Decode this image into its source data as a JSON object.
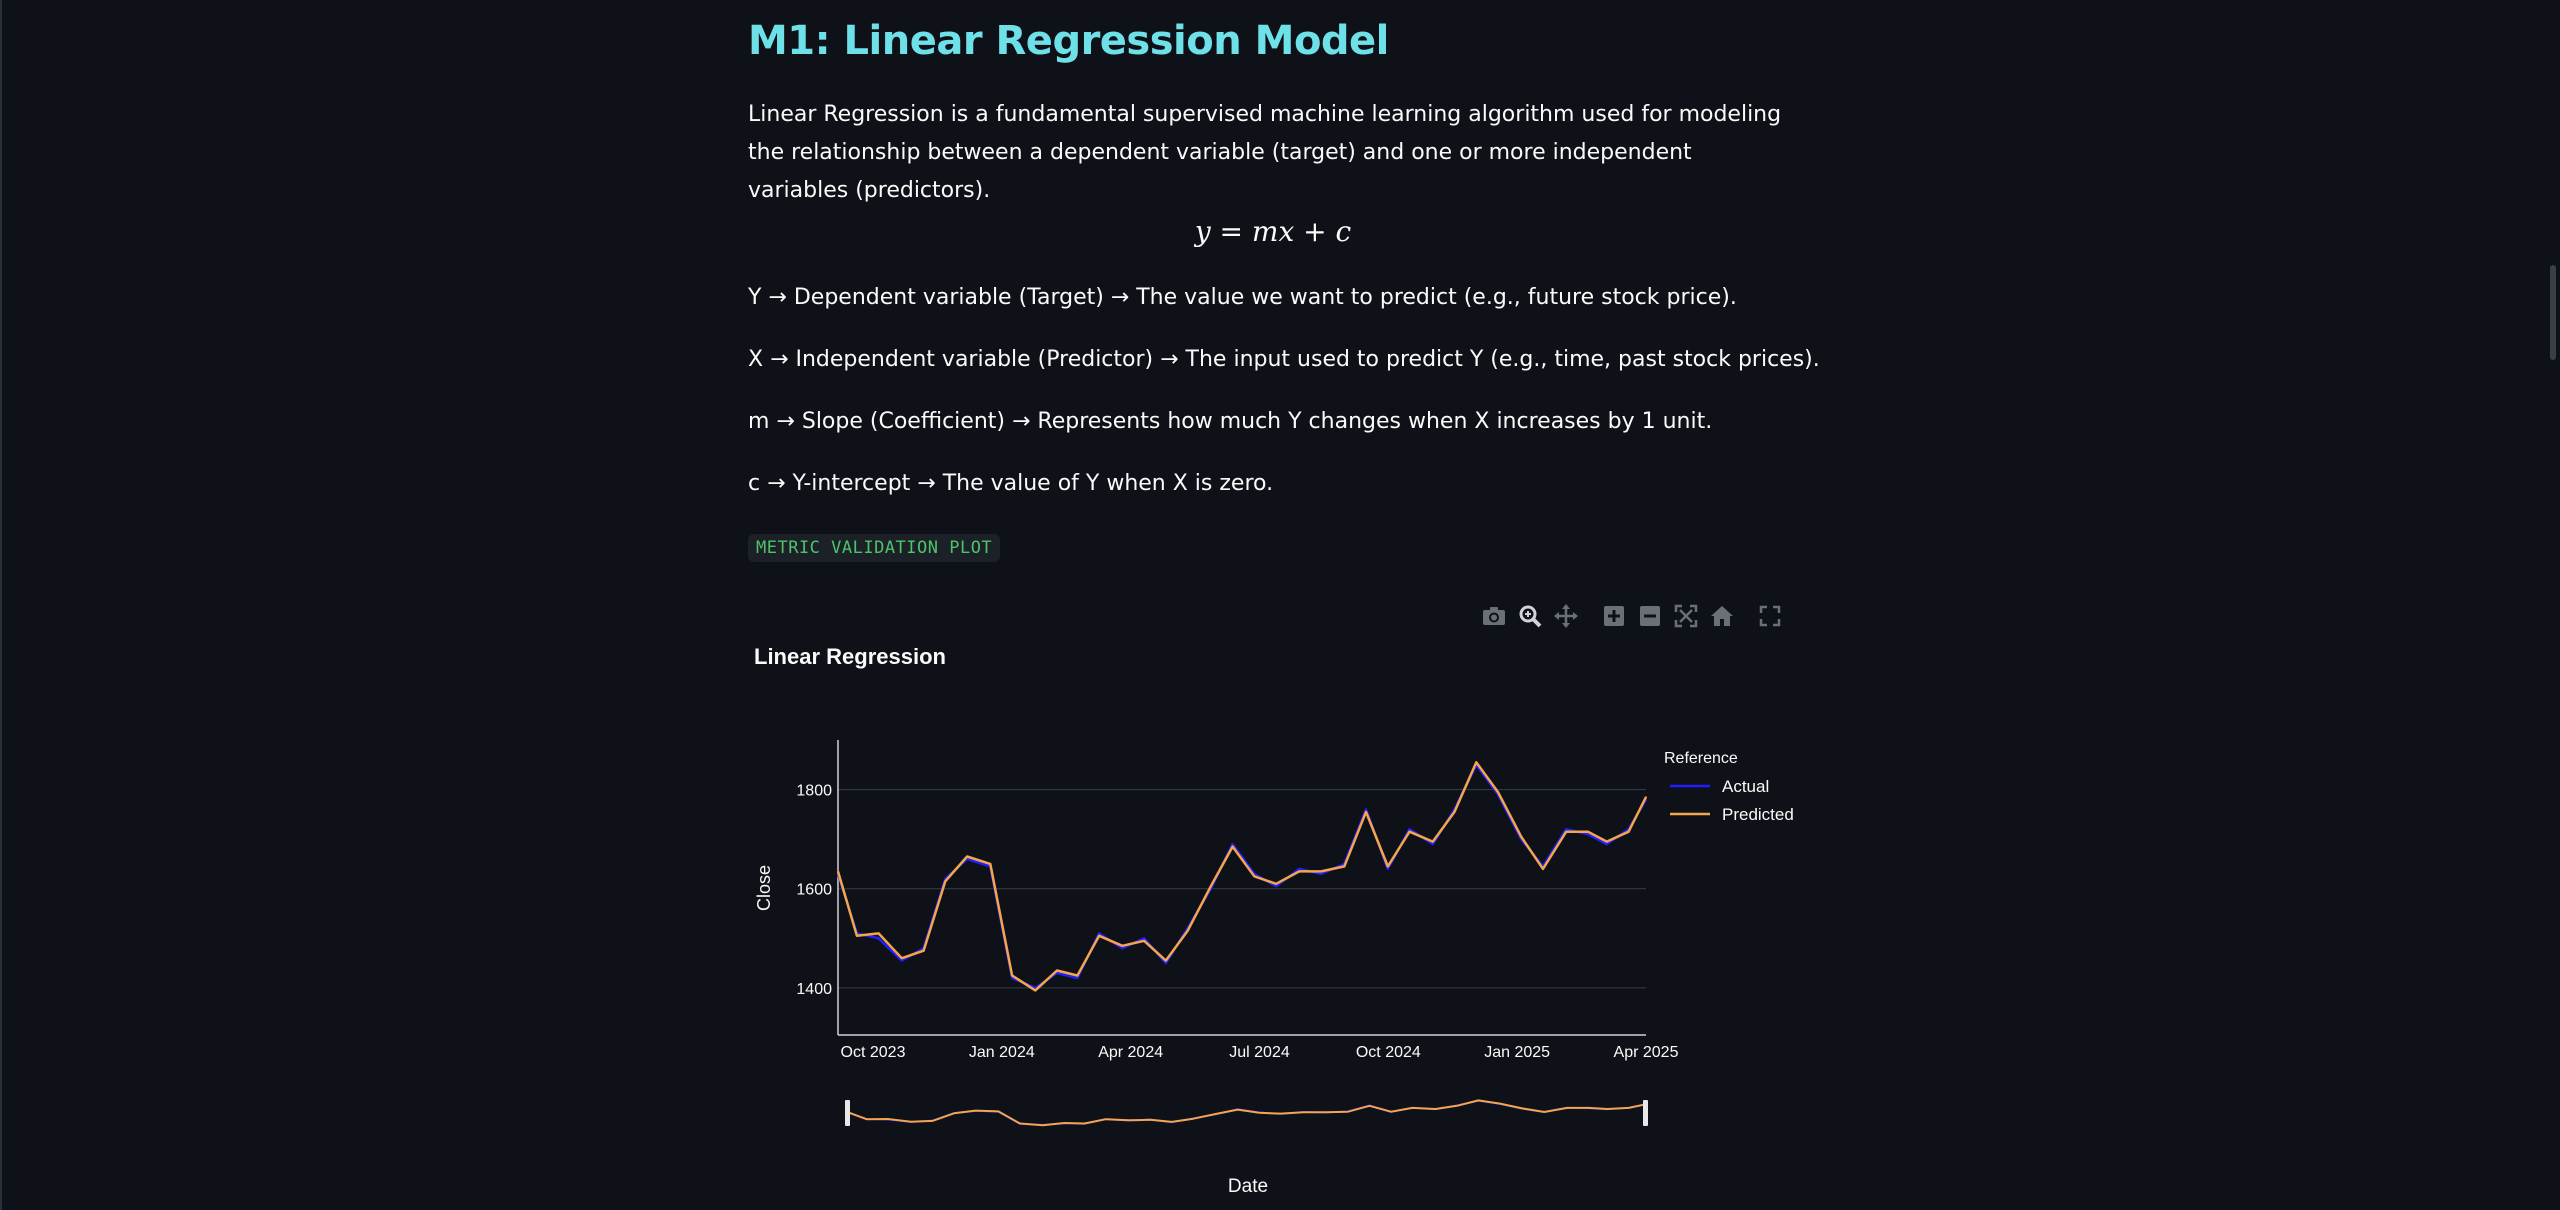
{
  "page": {
    "title": "M1: Linear Regression Model",
    "intro": "Linear Regression is a fundamental supervised machine learning algorithm used for modeling the relationship between a dependent variable (target) and one or more independent variables (predictors).",
    "formula": "y = mx + c",
    "definitions": [
      "Y → Dependent variable (Target) → The value we want to predict (e.g., future stock price).",
      "X → Independent variable (Predictor) → The input used to predict Y (e.g., time, past stock prices).",
      "m → Slope (Coefficient) → Represents how much Y changes when X increases by 1 unit.",
      "c → Y-intercept → The value of Y when X is zero."
    ],
    "code_badge": "METRIC VALIDATION PLOT"
  },
  "toolbar": {
    "icons": [
      "camera-icon",
      "zoom-icon",
      "pan-icon",
      "zoom-in-icon",
      "zoom-out-icon",
      "autoscale-icon",
      "home-icon",
      "fullscreen-icon"
    ]
  },
  "colors": {
    "background": "#0e1117",
    "title": "#6ee0e8",
    "badge_text": "#4ec36a",
    "actual": "#1f1fff",
    "predicted": "#f5a54a",
    "grid": "#3a3e47"
  },
  "chart_data": {
    "type": "line",
    "title": "Linear Regression",
    "xlabel": "Date",
    "ylabel": "Close",
    "x_ticks": [
      "Oct 2023",
      "Jan 2024",
      "Apr 2024",
      "Jul 2024",
      "Oct 2024",
      "Jan 2025",
      "Apr 2025"
    ],
    "y_ticks": [
      1400,
      1600,
      1800
    ],
    "ylim": [
      1305,
      1900
    ],
    "x_range": [
      "2023-09-22",
      "2025-04-01"
    ],
    "legend_title": "Reference",
    "legend_position": "right",
    "range_slider": true,
    "series": [
      {
        "name": "Actual",
        "color": "#1f1fff",
        "x": [
          "2023-09-22",
          "2023-10-05",
          "2023-10-20",
          "2023-11-05",
          "2023-11-20",
          "2023-12-05",
          "2023-12-20",
          "2024-01-05",
          "2024-01-20",
          "2024-02-05",
          "2024-02-20",
          "2024-03-05",
          "2024-03-20",
          "2024-04-05",
          "2024-04-20",
          "2024-05-05",
          "2024-05-20",
          "2024-06-05",
          "2024-06-20",
          "2024-07-05",
          "2024-07-20",
          "2024-08-05",
          "2024-08-20",
          "2024-09-05",
          "2024-09-20",
          "2024-10-05",
          "2024-10-20",
          "2024-11-05",
          "2024-11-20",
          "2024-12-05",
          "2024-12-20",
          "2025-01-05",
          "2025-01-20",
          "2025-02-05",
          "2025-02-20",
          "2025-03-05",
          "2025-03-20",
          "2025-04-01"
        ],
        "values": [
          1630,
          1510,
          1500,
          1455,
          1480,
          1620,
          1660,
          1645,
          1420,
          1400,
          1430,
          1420,
          1510,
          1480,
          1500,
          1450,
          1520,
          1600,
          1690,
          1630,
          1605,
          1640,
          1630,
          1650,
          1760,
          1640,
          1720,
          1690,
          1760,
          1850,
          1790,
          1700,
          1645,
          1720,
          1710,
          1690,
          1720,
          1780
        ]
      },
      {
        "name": "Predicted",
        "color": "#f5a54a",
        "x": [
          "2023-09-22",
          "2023-10-05",
          "2023-10-20",
          "2023-11-05",
          "2023-11-20",
          "2023-12-05",
          "2023-12-20",
          "2024-01-05",
          "2024-01-20",
          "2024-02-05",
          "2024-02-20",
          "2024-03-05",
          "2024-03-20",
          "2024-04-05",
          "2024-04-20",
          "2024-05-05",
          "2024-05-20",
          "2024-06-05",
          "2024-06-20",
          "2024-07-05",
          "2024-07-20",
          "2024-08-05",
          "2024-08-20",
          "2024-09-05",
          "2024-09-20",
          "2024-10-05",
          "2024-10-20",
          "2024-11-05",
          "2024-11-20",
          "2024-12-05",
          "2024-12-20",
          "2025-01-05",
          "2025-01-20",
          "2025-02-05",
          "2025-02-20",
          "2025-03-05",
          "2025-03-20",
          "2025-04-01"
        ],
        "values": [
          1635,
          1505,
          1510,
          1460,
          1475,
          1615,
          1665,
          1650,
          1425,
          1395,
          1435,
          1425,
          1505,
          1485,
          1495,
          1455,
          1515,
          1605,
          1685,
          1625,
          1610,
          1635,
          1635,
          1645,
          1755,
          1645,
          1715,
          1695,
          1755,
          1855,
          1795,
          1705,
          1640,
          1715,
          1715,
          1695,
          1715,
          1785
        ]
      }
    ]
  }
}
